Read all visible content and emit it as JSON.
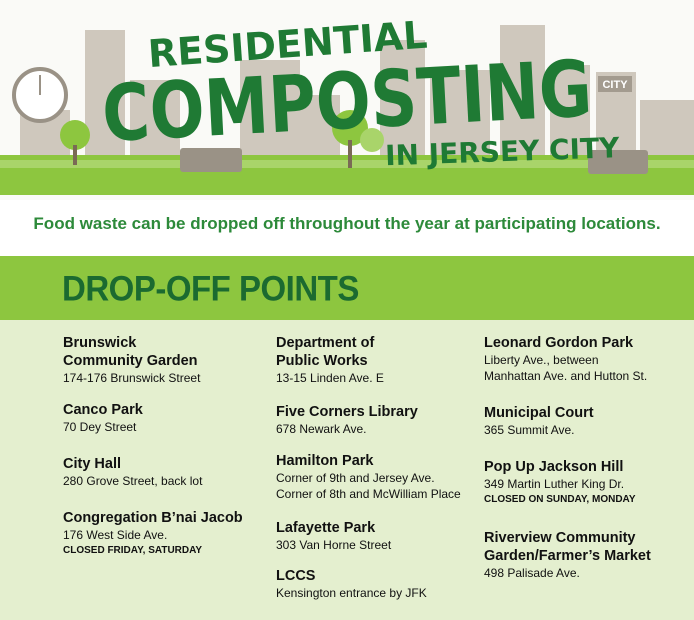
{
  "header": {
    "title_top": "RESIDENTIAL",
    "title_main": "COMPOSTING",
    "title_sub": "IN JERSEY CITY",
    "sign": "CITY"
  },
  "tagline": "Food waste can be dropped off throughout the year at participating locations.",
  "section_title": "DROP-OFF POINTS",
  "columns": [
    [
      {
        "name": [
          "Brunswick",
          "Community Garden"
        ],
        "lines": [
          "174-176 Brunswick Street"
        ]
      },
      {
        "name": [
          "Canco Park"
        ],
        "lines": [
          "70 Dey Street"
        ]
      },
      {
        "name": [
          "City Hall"
        ],
        "lines": [
          "280 Grove Street, back lot"
        ]
      },
      {
        "name": [
          "Congregation B’nai Jacob"
        ],
        "lines": [
          "176 West Side Ave."
        ],
        "note": "CLOSED FRIDAY, SATURDAY"
      }
    ],
    [
      {
        "name": [
          "Department of",
          "Public Works"
        ],
        "lines": [
          "13-15 Linden Ave. E"
        ]
      },
      {
        "name": [
          "Five Corners Library"
        ],
        "lines": [
          "678 Newark Ave."
        ]
      },
      {
        "name": [
          "Hamilton Park"
        ],
        "lines": [
          "Corner of 9th and Jersey Ave.",
          "Corner of 8th and McWilliam Place"
        ]
      },
      {
        "name": [
          "Lafayette Park"
        ],
        "lines": [
          "303 Van Horne Street"
        ]
      },
      {
        "name": [
          "LCCS"
        ],
        "lines": [
          "Kensington entrance by JFK"
        ]
      }
    ],
    [
      {
        "name": [
          "Leonard Gordon Park"
        ],
        "lines": [
          "Liberty Ave., between",
          "Manhattan Ave. and Hutton St."
        ]
      },
      {
        "name": [
          "Municipal Court"
        ],
        "lines": [
          "365 Summit Ave."
        ]
      },
      {
        "name": [
          "Pop Up Jackson Hill"
        ],
        "lines": [
          "349 Martin Luther King Dr."
        ],
        "note": "CLOSED ON SUNDAY, MONDAY"
      },
      {
        "name": [
          "Riverview Community",
          "Garden/Farmer’s Market"
        ],
        "lines": [
          "498 Palisade Ave."
        ]
      }
    ]
  ]
}
